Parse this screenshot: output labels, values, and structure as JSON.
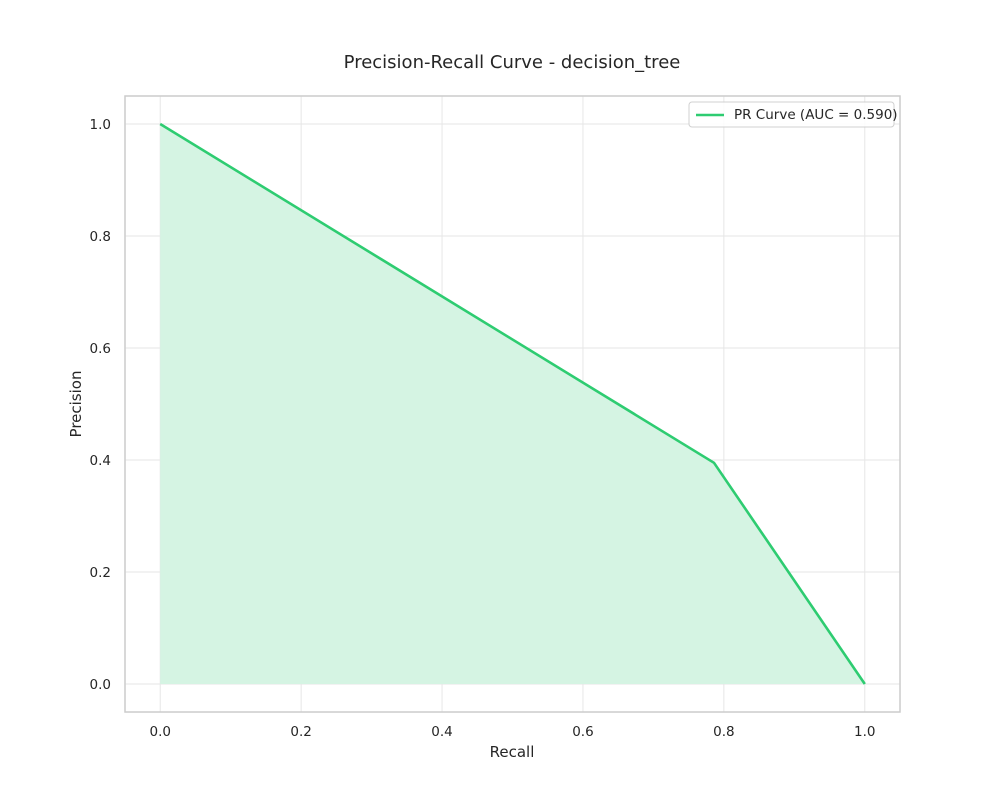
{
  "chart_data": {
    "type": "area",
    "title": "Precision-Recall Curve - decision_tree",
    "xlabel": "Recall",
    "ylabel": "Precision",
    "xlim": [
      -0.05,
      1.05
    ],
    "ylim": [
      -0.05,
      1.05
    ],
    "x_ticks": [
      "0.0",
      "0.2",
      "0.4",
      "0.6",
      "0.8",
      "1.0"
    ],
    "y_ticks": [
      "0.0",
      "0.2",
      "0.4",
      "0.6",
      "0.8",
      "1.0"
    ],
    "grid": true,
    "legend_position": "top-right",
    "colors": {
      "line": "#2ecc71",
      "fill": "#d5f4e3",
      "frame": "#cccccc"
    },
    "series": [
      {
        "name": "PR Curve (AUC = 0.590)",
        "x": [
          0.0,
          0.786,
          1.0
        ],
        "y": [
          1.0,
          0.395,
          0.0
        ]
      }
    ]
  }
}
